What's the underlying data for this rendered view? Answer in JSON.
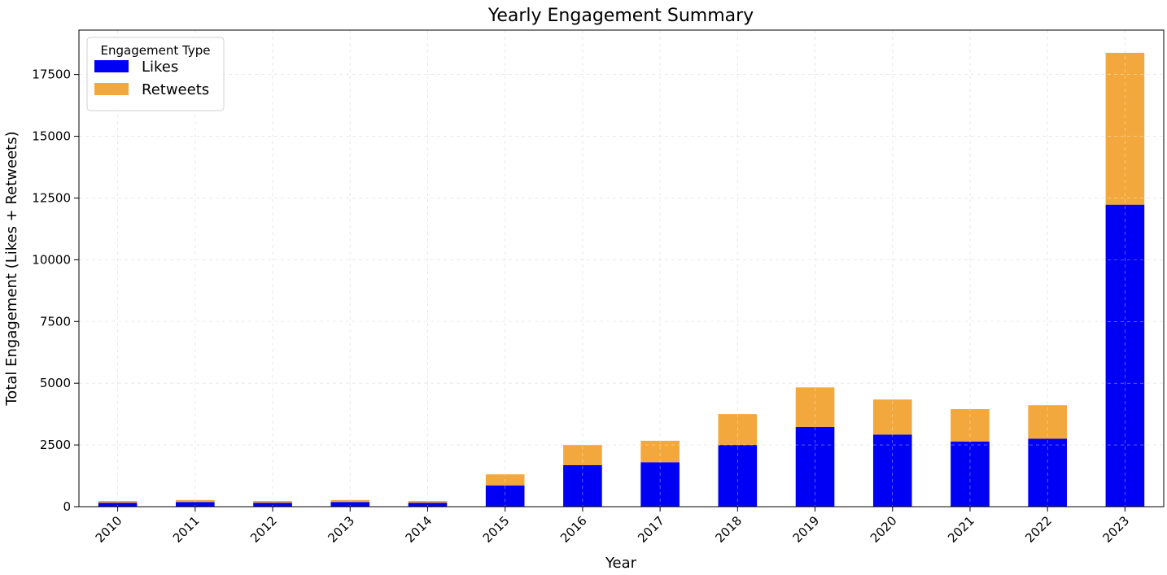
{
  "chart_data": {
    "type": "bar",
    "stacked": true,
    "title": "Yearly Engagement Summary",
    "xlabel": "Year",
    "ylabel": "Total Engagement (Likes + Retweets)",
    "categories": [
      "2010",
      "2011",
      "2012",
      "2013",
      "2014",
      "2015",
      "2016",
      "2017",
      "2018",
      "2019",
      "2020",
      "2021",
      "2022",
      "2023"
    ],
    "series": [
      {
        "name": "Likes",
        "color": "#0000f5",
        "values": [
          160,
          190,
          160,
          190,
          160,
          860,
          1680,
          1800,
          2500,
          3230,
          2920,
          2640,
          2750,
          12230
        ]
      },
      {
        "name": "Retweets",
        "color": "#f2a83c",
        "values": [
          70,
          80,
          70,
          80,
          70,
          450,
          820,
          870,
          1250,
          1600,
          1420,
          1310,
          1360,
          6150
        ]
      }
    ],
    "ylim": [
      0,
      19300
    ],
    "yticks": [
      0,
      2500,
      5000,
      7500,
      10000,
      12500,
      15000,
      17500
    ],
    "ytick_labels": [
      "0",
      "2500",
      "5000",
      "7500",
      "10000",
      "12500",
      "15000",
      "17500"
    ],
    "grid": true,
    "legend": {
      "title": "Engagement Type",
      "placement": "top-left"
    }
  }
}
